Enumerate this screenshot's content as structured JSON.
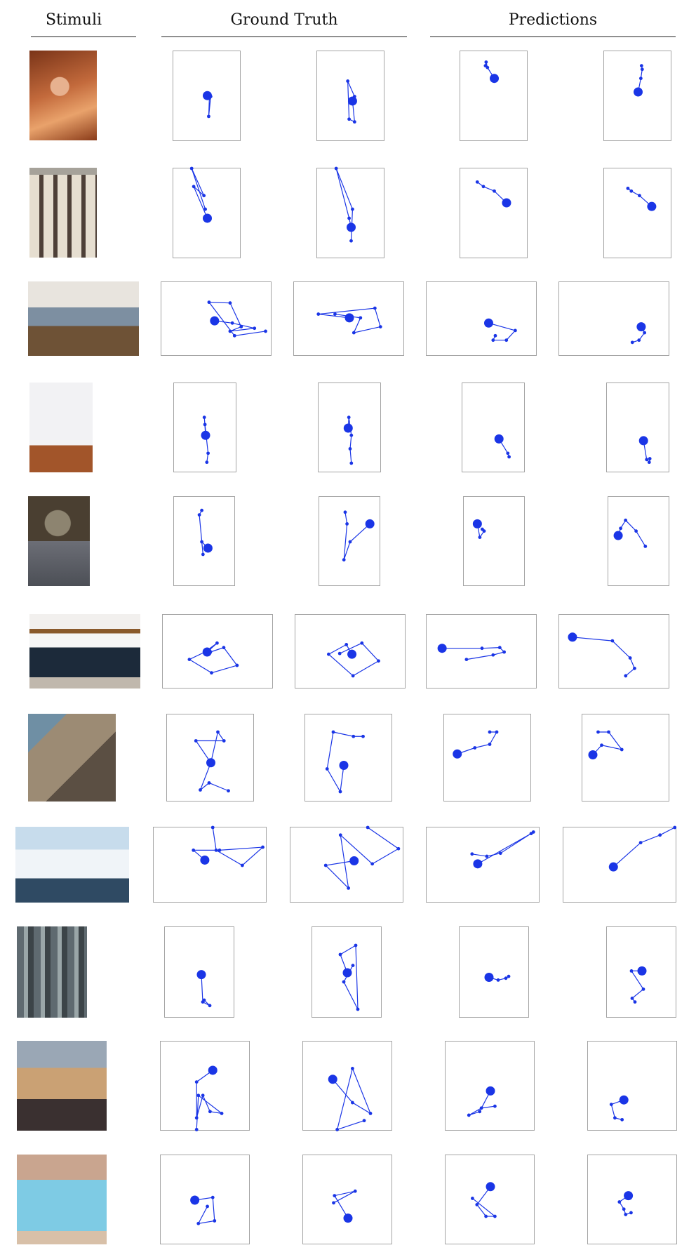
{
  "headers": {
    "stimuli": "Stimuli",
    "ground_truth": "Ground Truth",
    "predictions": "Predictions"
  },
  "colors": {
    "scanpath": "#1a35e6",
    "panel_border": "#a4a4a4"
  },
  "rows": [
    {
      "stimulus": "cave-hiker-photo",
      "scanpaths": [
        [
          [
            0.5,
            0.49
          ],
          [
            0.53,
            0.52
          ],
          [
            0.52,
            0.72
          ],
          [
            0.55,
            0.5
          ],
          [
            0.5,
            0.52
          ]
        ],
        [
          [
            0.52,
            0.55
          ],
          [
            0.55,
            0.78
          ],
          [
            0.47,
            0.75
          ],
          [
            0.45,
            0.33
          ],
          [
            0.55,
            0.5
          ]
        ],
        [
          [
            0.5,
            0.3
          ],
          [
            0.4,
            0.18
          ],
          [
            0.38,
            0.12
          ],
          [
            0.37,
            0.16
          ]
        ],
        [
          [
            0.5,
            0.45
          ],
          [
            0.54,
            0.3
          ],
          [
            0.56,
            0.2
          ],
          [
            0.55,
            0.16
          ]
        ]
      ]
    },
    {
      "stimulus": "building-facade-photo",
      "scanpaths": [
        [
          [
            0.5,
            0.55
          ],
          [
            0.3,
            0.2
          ],
          [
            0.45,
            0.3
          ],
          [
            0.27,
            0.0
          ],
          [
            0.47,
            0.45
          ]
        ],
        [
          [
            0.5,
            0.65
          ],
          [
            0.47,
            0.55
          ],
          [
            0.28,
            0.0
          ],
          [
            0.52,
            0.45
          ],
          [
            0.5,
            0.8
          ]
        ],
        [
          [
            0.68,
            0.38
          ],
          [
            0.5,
            0.25
          ],
          [
            0.34,
            0.2
          ],
          [
            0.25,
            0.15
          ]
        ],
        [
          [
            0.7,
            0.42
          ],
          [
            0.52,
            0.3
          ],
          [
            0.4,
            0.25
          ],
          [
            0.35,
            0.22
          ]
        ]
      ]
    },
    {
      "stimulus": "bedroom-interior-photo",
      "scanpaths": [
        [
          [
            0.48,
            0.52
          ],
          [
            0.64,
            0.55
          ],
          [
            0.84,
            0.62
          ],
          [
            0.62,
            0.66
          ],
          [
            0.72,
            0.6
          ],
          [
            0.62,
            0.28
          ],
          [
            0.43,
            0.27
          ],
          [
            0.66,
            0.72
          ],
          [
            0.94,
            0.66
          ]
        ],
        [
          [
            0.5,
            0.48
          ],
          [
            0.22,
            0.43
          ],
          [
            0.73,
            0.35
          ],
          [
            0.78,
            0.6
          ],
          [
            0.54,
            0.68
          ],
          [
            0.6,
            0.48
          ],
          [
            0.37,
            0.43
          ]
        ],
        [
          [
            0.56,
            0.55
          ],
          [
            0.8,
            0.65
          ],
          [
            0.72,
            0.78
          ],
          [
            0.6,
            0.78
          ],
          [
            0.62,
            0.72
          ]
        ],
        [
          [
            0.74,
            0.6
          ],
          [
            0.77,
            0.68
          ],
          [
            0.72,
            0.78
          ],
          [
            0.66,
            0.81
          ]
        ]
      ]
    },
    {
      "stimulus": "white-hallway-photo",
      "scanpaths": [
        [
          [
            0.5,
            0.58
          ],
          [
            0.48,
            0.38
          ],
          [
            0.49,
            0.46
          ],
          [
            0.54,
            0.78
          ],
          [
            0.52,
            0.88
          ]
        ],
        [
          [
            0.47,
            0.5
          ],
          [
            0.48,
            0.38
          ],
          [
            0.52,
            0.58
          ],
          [
            0.5,
            0.73
          ],
          [
            0.52,
            0.89
          ]
        ],
        [
          [
            0.58,
            0.62
          ],
          [
            0.72,
            0.78
          ],
          [
            0.74,
            0.82
          ]
        ],
        [
          [
            0.58,
            0.64
          ],
          [
            0.63,
            0.85
          ],
          [
            0.67,
            0.88
          ],
          [
            0.68,
            0.84
          ]
        ]
      ]
    },
    {
      "stimulus": "man-working-photo",
      "scanpaths": [
        [
          [
            0.55,
            0.57
          ],
          [
            0.45,
            0.5
          ],
          [
            0.47,
            0.64
          ],
          [
            0.41,
            0.2
          ],
          [
            0.45,
            0.15
          ]
        ],
        [
          [
            0.82,
            0.3
          ],
          [
            0.5,
            0.5
          ],
          [
            0.4,
            0.7
          ],
          [
            0.45,
            0.3
          ],
          [
            0.42,
            0.17
          ]
        ],
        [
          [
            0.22,
            0.3
          ],
          [
            0.26,
            0.45
          ],
          [
            0.33,
            0.38
          ],
          [
            0.3,
            0.36
          ]
        ],
        [
          [
            0.16,
            0.43
          ],
          [
            0.2,
            0.35
          ],
          [
            0.28,
            0.26
          ],
          [
            0.45,
            0.38
          ],
          [
            0.6,
            0.55
          ]
        ]
      ]
    },
    {
      "stimulus": "bunk-bed-photo",
      "scanpaths": [
        [
          [
            0.4,
            0.5
          ],
          [
            0.49,
            0.38
          ],
          [
            0.38,
            0.5
          ],
          [
            0.24,
            0.6
          ],
          [
            0.44,
            0.78
          ],
          [
            0.67,
            0.68
          ],
          [
            0.55,
            0.44
          ],
          [
            0.43,
            0.5
          ]
        ],
        [
          [
            0.51,
            0.53
          ],
          [
            0.46,
            0.4
          ],
          [
            0.3,
            0.53
          ],
          [
            0.52,
            0.82
          ],
          [
            0.75,
            0.62
          ],
          [
            0.6,
            0.38
          ],
          [
            0.4,
            0.52
          ]
        ],
        [
          [
            0.14,
            0.45
          ],
          [
            0.5,
            0.45
          ],
          [
            0.66,
            0.44
          ],
          [
            0.7,
            0.5
          ],
          [
            0.6,
            0.54
          ],
          [
            0.36,
            0.6
          ]
        ],
        [
          [
            0.12,
            0.3
          ],
          [
            0.48,
            0.35
          ],
          [
            0.64,
            0.58
          ],
          [
            0.68,
            0.72
          ],
          [
            0.6,
            0.82
          ]
        ]
      ]
    },
    {
      "stimulus": "stone-street-photo",
      "scanpaths": [
        [
          [
            0.5,
            0.55
          ],
          [
            0.33,
            0.3
          ],
          [
            0.65,
            0.3
          ],
          [
            0.58,
            0.2
          ],
          [
            0.5,
            0.55
          ],
          [
            0.38,
            0.86
          ],
          [
            0.48,
            0.78
          ],
          [
            0.7,
            0.87
          ]
        ],
        [
          [
            0.44,
            0.58
          ],
          [
            0.4,
            0.88
          ],
          [
            0.25,
            0.62
          ],
          [
            0.32,
            0.2
          ],
          [
            0.55,
            0.25
          ],
          [
            0.66,
            0.25
          ]
        ],
        [
          [
            0.15,
            0.45
          ],
          [
            0.35,
            0.38
          ],
          [
            0.52,
            0.34
          ],
          [
            0.6,
            0.2
          ],
          [
            0.52,
            0.2
          ]
        ],
        [
          [
            0.12,
            0.46
          ],
          [
            0.22,
            0.35
          ],
          [
            0.45,
            0.4
          ],
          [
            0.3,
            0.2
          ],
          [
            0.18,
            0.2
          ]
        ]
      ]
    },
    {
      "stimulus": "snowy-mountain-photo",
      "scanpaths": [
        [
          [
            0.45,
            0.43
          ],
          [
            0.35,
            0.3
          ],
          [
            0.58,
            0.3
          ],
          [
            0.96,
            0.26
          ],
          [
            0.78,
            0.5
          ],
          [
            0.55,
            0.3
          ],
          [
            0.52,
            0.0
          ]
        ],
        [
          [
            0.56,
            0.44
          ],
          [
            0.31,
            0.5
          ],
          [
            0.51,
            0.8
          ],
          [
            0.44,
            0.1
          ],
          [
            0.72,
            0.48
          ],
          [
            0.95,
            0.28
          ],
          [
            0.68,
            0.0
          ]
        ],
        [
          [
            0.45,
            0.48
          ],
          [
            0.92,
            0.08
          ],
          [
            0.94,
            0.06
          ],
          [
            0.65,
            0.34
          ],
          [
            0.53,
            0.38
          ],
          [
            0.4,
            0.35
          ]
        ],
        [
          [
            0.44,
            0.52
          ],
          [
            0.68,
            0.2
          ],
          [
            0.85,
            0.1
          ],
          [
            0.98,
            0.0
          ]
        ]
      ]
    },
    {
      "stimulus": "city-aerial-photo",
      "scanpaths": [
        [
          [
            0.52,
            0.52
          ],
          [
            0.54,
            0.82
          ],
          [
            0.64,
            0.86
          ],
          [
            0.56,
            0.8
          ]
        ],
        [
          [
            0.5,
            0.5
          ],
          [
            0.4,
            0.3
          ],
          [
            0.62,
            0.2
          ],
          [
            0.65,
            0.9
          ],
          [
            0.45,
            0.6
          ],
          [
            0.58,
            0.42
          ]
        ],
        [
          [
            0.42,
            0.55
          ],
          [
            0.55,
            0.58
          ],
          [
            0.66,
            0.56
          ],
          [
            0.7,
            0.54
          ]
        ],
        [
          [
            0.5,
            0.48
          ],
          [
            0.35,
            0.48
          ],
          [
            0.52,
            0.68
          ],
          [
            0.36,
            0.78
          ],
          [
            0.4,
            0.82
          ]
        ]
      ]
    },
    {
      "stimulus": "conference-room-photo",
      "scanpaths": [
        [
          [
            0.58,
            0.32
          ],
          [
            0.4,
            0.45
          ],
          [
            0.4,
            0.85
          ],
          [
            0.47,
            0.6
          ],
          [
            0.55,
            0.78
          ],
          [
            0.68,
            0.8
          ],
          [
            0.42,
            0.6
          ],
          [
            0.4,
            0.98
          ]
        ],
        [
          [
            0.33,
            0.42
          ],
          [
            0.55,
            0.68
          ],
          [
            0.75,
            0.8
          ],
          [
            0.55,
            0.3
          ],
          [
            0.38,
            0.98
          ],
          [
            0.68,
            0.88
          ]
        ],
        [
          [
            0.5,
            0.55
          ],
          [
            0.38,
            0.78
          ],
          [
            0.26,
            0.82
          ],
          [
            0.4,
            0.74
          ],
          [
            0.55,
            0.72
          ]
        ],
        [
          [
            0.4,
            0.65
          ],
          [
            0.26,
            0.7
          ],
          [
            0.3,
            0.85
          ],
          [
            0.38,
            0.87
          ]
        ]
      ]
    },
    {
      "stimulus": "swimming-pool-photo",
      "scanpaths": [
        [
          [
            0.38,
            0.5
          ],
          [
            0.58,
            0.47
          ],
          [
            0.6,
            0.73
          ],
          [
            0.42,
            0.76
          ],
          [
            0.52,
            0.57
          ]
        ],
        [
          [
            0.5,
            0.7
          ],
          [
            0.35,
            0.45
          ],
          [
            0.58,
            0.4
          ],
          [
            0.34,
            0.53
          ]
        ],
        [
          [
            0.5,
            0.35
          ],
          [
            0.35,
            0.55
          ],
          [
            0.45,
            0.68
          ],
          [
            0.55,
            0.68
          ],
          [
            0.3,
            0.48
          ]
        ],
        [
          [
            0.45,
            0.45
          ],
          [
            0.35,
            0.52
          ],
          [
            0.4,
            0.6
          ],
          [
            0.42,
            0.66
          ],
          [
            0.48,
            0.64
          ]
        ]
      ]
    }
  ]
}
